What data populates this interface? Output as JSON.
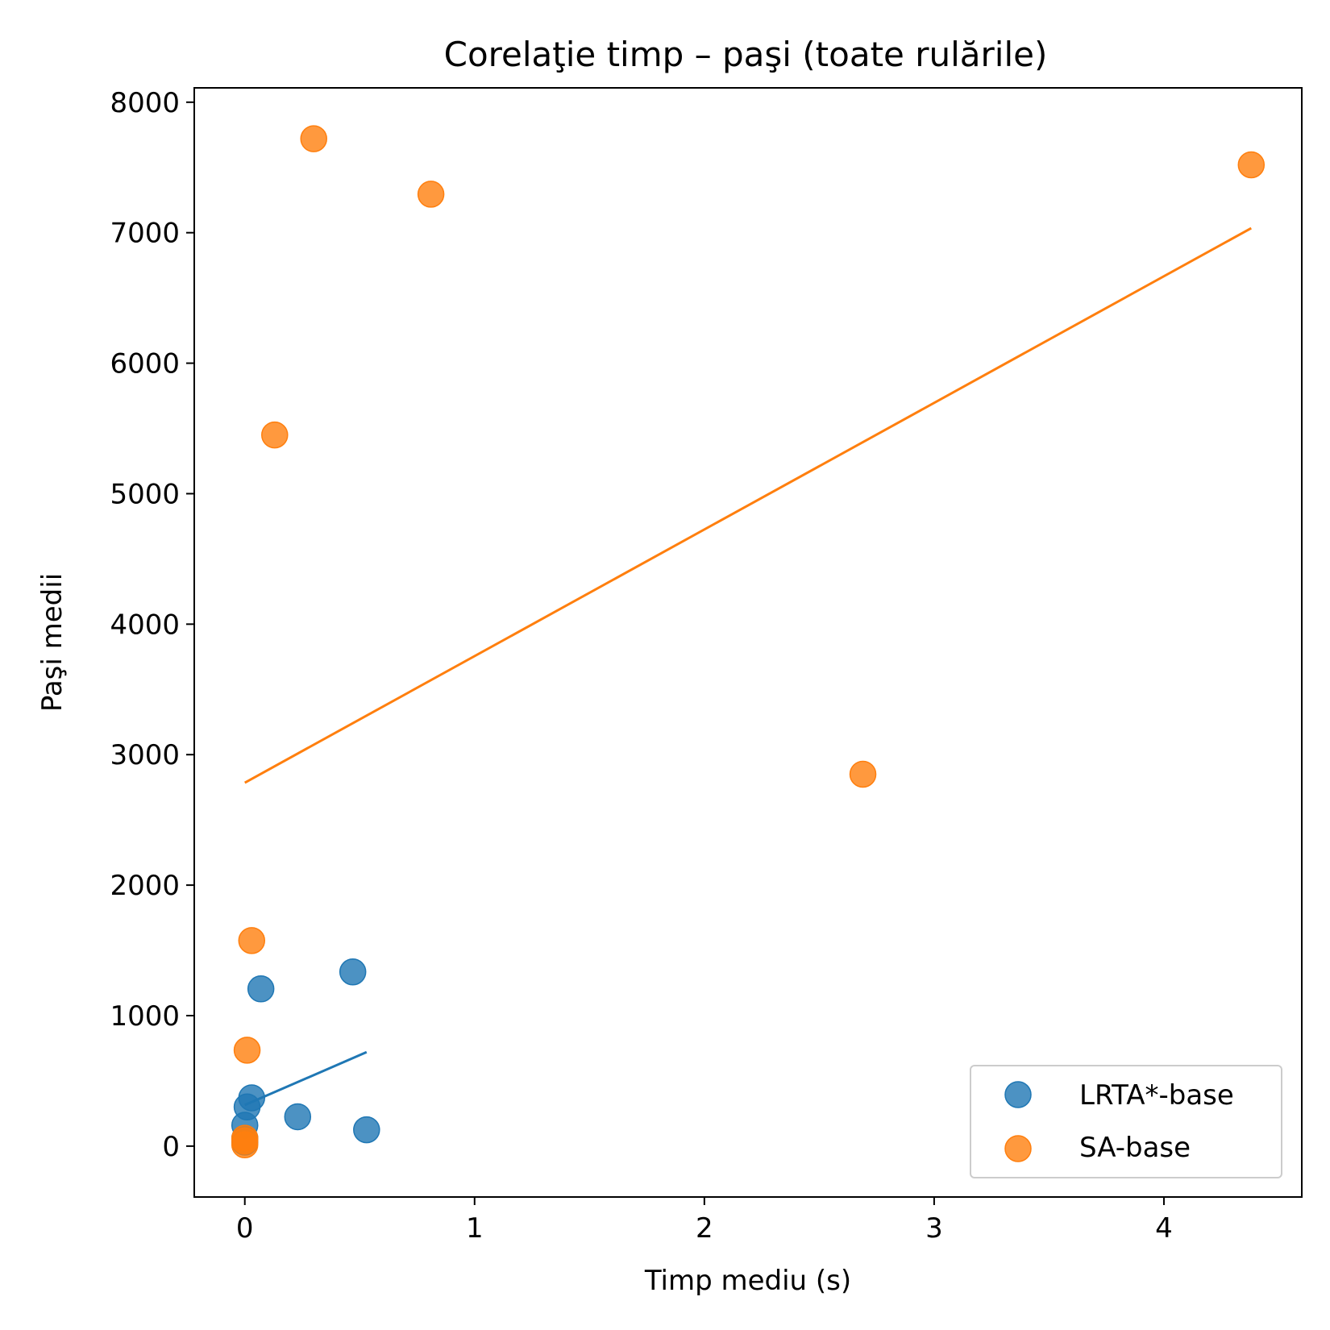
{
  "chart_data": {
    "type": "scatter",
    "title": "Corelaţie timp – paşi (toate rulările)",
    "xlabel": "Timp mediu (s)",
    "ylabel": "Paşi medii",
    "xlim": [
      -0.22,
      4.6
    ],
    "ylim": [
      -390,
      8110
    ],
    "xticks": [
      0,
      1,
      2,
      3,
      4
    ],
    "yticks": [
      0,
      1000,
      2000,
      3000,
      4000,
      5000,
      6000,
      7000,
      8000
    ],
    "grid": false,
    "legend_position": "lower-right",
    "series": [
      {
        "name": "LRTA*-base",
        "color": "#1f77b4",
        "points": [
          {
            "x": 0.47,
            "y": 1335
          },
          {
            "x": 0.07,
            "y": 1205
          },
          {
            "x": 0.03,
            "y": 370
          },
          {
            "x": 0.01,
            "y": 300
          },
          {
            "x": 0.0,
            "y": 160
          },
          {
            "x": 0.23,
            "y": 225
          },
          {
            "x": 0.53,
            "y": 125
          },
          {
            "x": 0.0,
            "y": 60
          },
          {
            "x": 0.0,
            "y": 30
          }
        ],
        "trend": {
          "x": [
            0.0,
            0.53
          ],
          "y": [
            315,
            720
          ]
        }
      },
      {
        "name": "SA-base",
        "color": "#ff7f0e",
        "points": [
          {
            "x": 0.3,
            "y": 7720
          },
          {
            "x": 0.81,
            "y": 7295
          },
          {
            "x": 4.38,
            "y": 7520
          },
          {
            "x": 0.13,
            "y": 5450
          },
          {
            "x": 2.69,
            "y": 2850
          },
          {
            "x": 0.03,
            "y": 1575
          },
          {
            "x": 0.01,
            "y": 735
          },
          {
            "x": 0.0,
            "y": 60
          },
          {
            "x": 0.0,
            "y": 40
          },
          {
            "x": 0.0,
            "y": 10
          }
        ],
        "trend": {
          "x": [
            0.0,
            4.38
          ],
          "y": [
            2785,
            7035
          ]
        }
      }
    ]
  }
}
